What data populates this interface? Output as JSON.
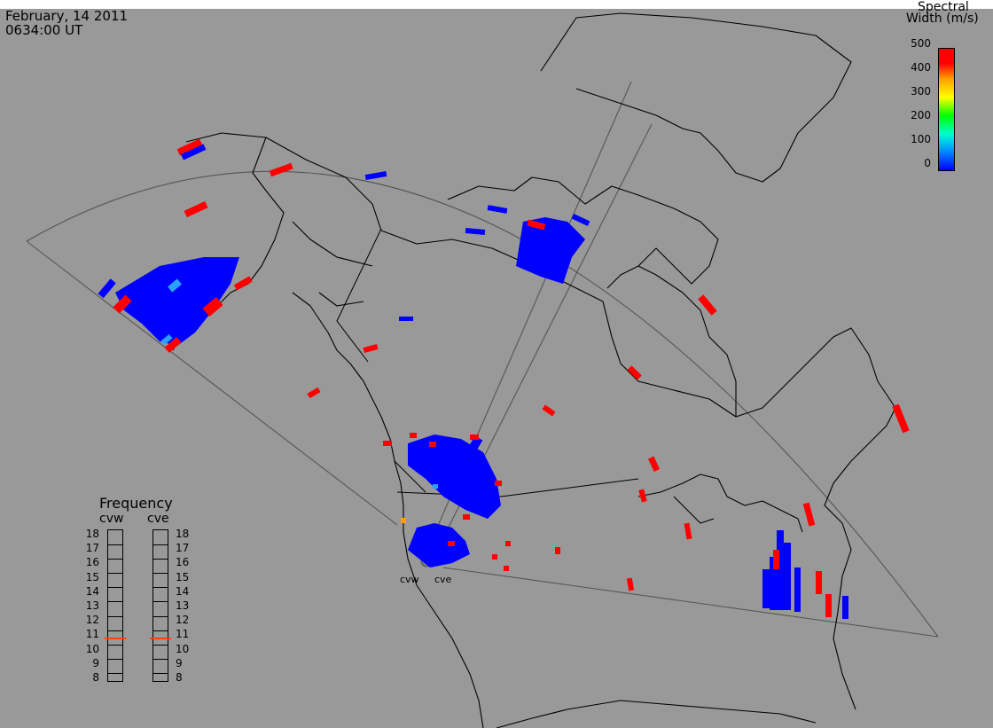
{
  "header": {
    "date": "February, 14 2011",
    "time": "0634:00 UT"
  },
  "colorbar": {
    "title_line1": "Spectral",
    "title_line2": "Width (m/s)",
    "ticks": [
      "500",
      "400",
      "300",
      "200",
      "100",
      "0"
    ],
    "range": [
      0,
      500
    ],
    "colors": [
      "#0000ff",
      "#00a0ff",
      "#00ffcc",
      "#00ff00",
      "#ffff00",
      "#ffa000",
      "#ff0000"
    ]
  },
  "frequency": {
    "title": "Frequency",
    "radars": [
      {
        "name": "cvw",
        "value": 10.8
      },
      {
        "name": "cve",
        "value": 10.8
      }
    ],
    "scale": [
      "18",
      "17",
      "16",
      "15",
      "14",
      "13",
      "12",
      "11",
      "10",
      "9",
      "8"
    ],
    "min": 8,
    "max": 18,
    "marker_color": "#ff4000"
  },
  "stations": {
    "west": "cvw",
    "east": "cve"
  },
  "colors": {
    "background": "#999999",
    "coastline": "#000000",
    "fov": "#555555",
    "scatter_low": "#0000ff",
    "scatter_high": "#ff0000"
  }
}
